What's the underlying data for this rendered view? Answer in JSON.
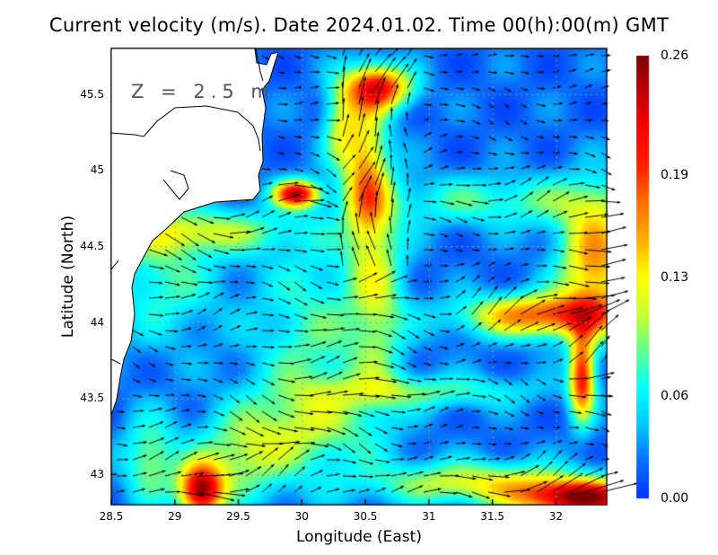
{
  "title": "Current velocity (m/s). Date 2024.01.02. Time 00(h):00(m) GMT",
  "depth_label": "Z = 2.5 m",
  "x_axis": {
    "label": "Longitude (East)",
    "ticks": [
      "28.5",
      "29",
      "29.5",
      "30",
      "30.5",
      "31",
      "31.5",
      "32"
    ],
    "range": [
      28.5,
      32.4
    ]
  },
  "y_axis": {
    "label": "Latitude (North)",
    "ticks": [
      "45.5",
      "45",
      "44.5",
      "44",
      "43.5",
      "43"
    ],
    "range": [
      42.8,
      45.8
    ]
  },
  "colorbar": {
    "ticks": [
      "0.26",
      "0.19",
      "0.13",
      "0.06",
      "0.00"
    ],
    "range": [
      0,
      0.26
    ],
    "colors": [
      "#0033ff",
      "#0a6cff",
      "#00c8ff",
      "#00ffff",
      "#60ff90",
      "#c8ff30",
      "#ffff00",
      "#ffb000",
      "#ff7000",
      "#ff2000",
      "#ff0000",
      "#c00000",
      "#800000"
    ]
  },
  "map_data": {
    "type": "quiver-map",
    "variable": "current velocity",
    "units": "m/s",
    "grid": "dotted",
    "land_color": "#ffffff"
  }
}
